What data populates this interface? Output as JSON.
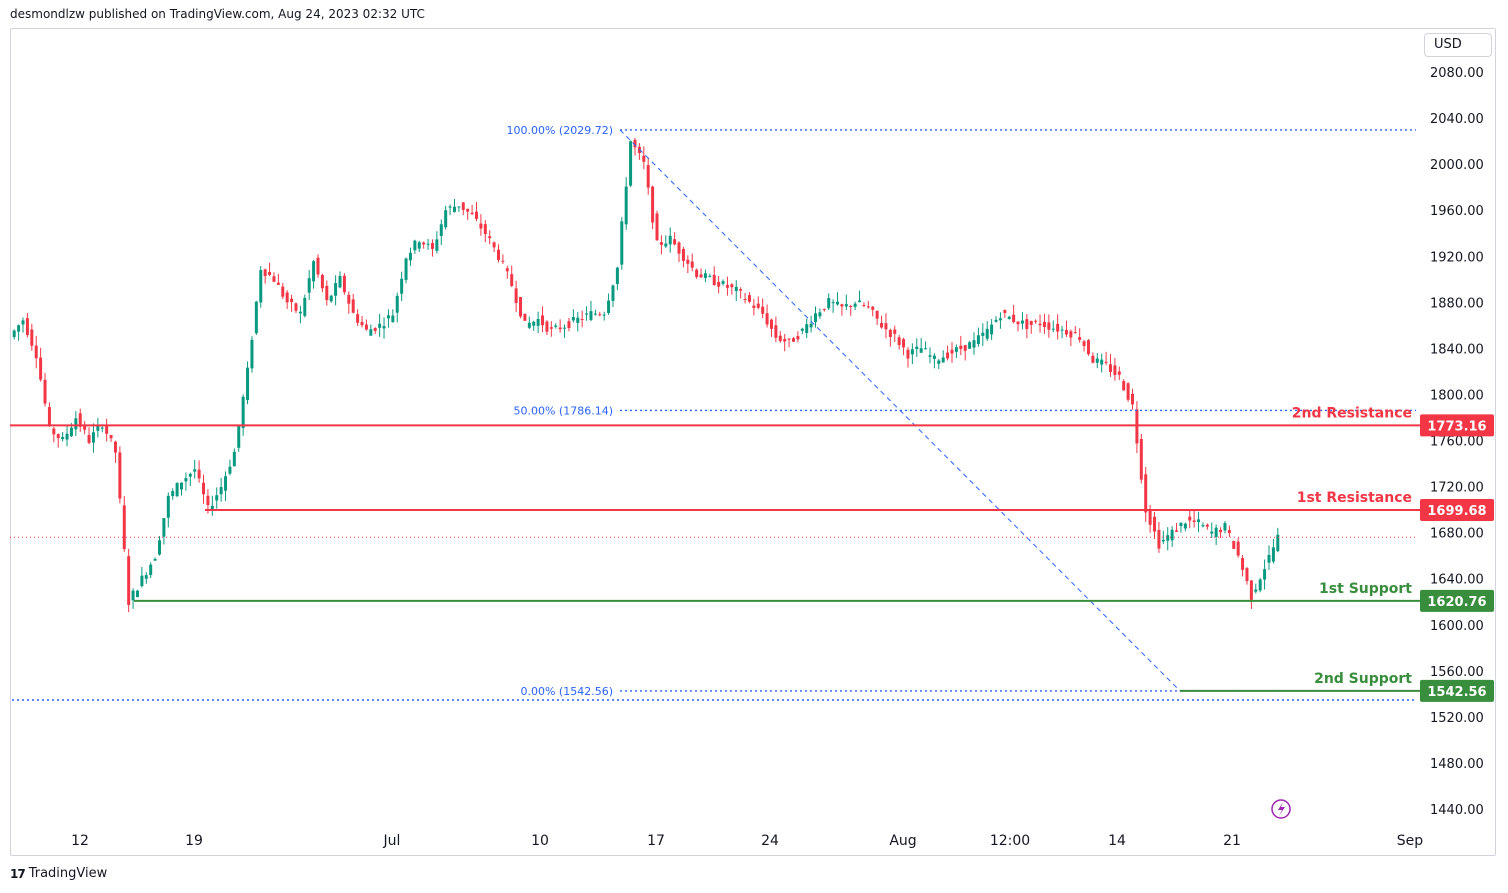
{
  "header": {
    "publisher": "desmondlzw published on TradingView.com, Aug 24, 2023 02:32 UTC"
  },
  "currency": "USD",
  "footer": {
    "brand": "TradingView",
    "logo_icon": "tradingview-logo-icon"
  },
  "colors": {
    "up": "#089981",
    "down": "#f23645",
    "resistance": "#f23645",
    "support": "#388e3c",
    "fib": "#2962ff"
  },
  "chart_data": {
    "type": "candlestick",
    "y_ticks": [
      "2080.00",
      "2040.00",
      "2000.00",
      "1960.00",
      "1920.00",
      "1880.00",
      "1840.00",
      "1800.00",
      "1760.00",
      "1720.00",
      "1680.00",
      "1640.00",
      "1600.00",
      "1560.00",
      "1520.00",
      "1480.00",
      "1440.00"
    ],
    "x_ticks": [
      "12",
      "19",
      "Jul",
      "10",
      "17",
      "24",
      "Aug",
      "12:00",
      "14",
      "21",
      "Sep"
    ],
    "ylim": [
      1425,
      2100
    ],
    "levels": [
      {
        "name": "2nd Resistance",
        "value": 1773.16,
        "label": "1773.16",
        "kind": "resistance"
      },
      {
        "name": "1st Resistance",
        "value": 1699.68,
        "label": "1699.68",
        "kind": "resistance"
      },
      {
        "name": "1st Support",
        "value": 1620.76,
        "label": "1620.76",
        "kind": "support"
      },
      {
        "name": "2nd Support",
        "value": 1542.56,
        "label": "1542.56",
        "kind": "support"
      }
    ],
    "fibonacci": [
      {
        "label": "100.00% (2029.72)",
        "value": 2029.72
      },
      {
        "label": "50.00% (1786.14)",
        "value": 1786.14
      },
      {
        "label": "0.00% (1542.56)",
        "value": 1542.56
      }
    ],
    "last_price": 1676,
    "path": [
      1850,
      1865,
      1835,
      1770,
      1760,
      1780,
      1760,
      1775,
      1750,
      1620,
      1640,
      1660,
      1710,
      1725,
      1735,
      1700,
      1720,
      1750,
      1820,
      1910,
      1900,
      1880,
      1870,
      1915,
      1880,
      1900,
      1870,
      1855,
      1860,
      1870,
      1920,
      1935,
      1925,
      1960,
      1965,
      1955,
      1940,
      1920,
      1895,
      1860,
      1865,
      1855,
      1860,
      1865,
      1870,
      1872,
      1910,
      2020,
      2000,
      1930,
      1935,
      1920,
      1905,
      1900,
      1895,
      1890,
      1880,
      1870,
      1850,
      1845,
      1855,
      1870,
      1880,
      1875,
      1880,
      1875,
      1860,
      1850,
      1835,
      1840,
      1830,
      1835,
      1840,
      1845,
      1855,
      1870,
      1865,
      1860,
      1862,
      1858,
      1855,
      1850,
      1830,
      1825,
      1815,
      1790,
      1700,
      1670,
      1680,
      1690,
      1688,
      1680,
      1685,
      1660,
      1625,
      1650,
      1676
    ]
  }
}
